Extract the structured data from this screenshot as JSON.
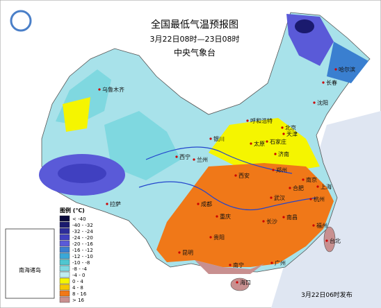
{
  "header": {
    "title": "全国最低气温预报图",
    "subtitle": "3月22日08时—23日08时",
    "agency": "中央气象台"
  },
  "legend": {
    "title": "图例 (℃)",
    "items": [
      {
        "label": "< -40",
        "color": "#0a0a3c"
      },
      {
        "label": "-40 - -32",
        "color": "#1a1a6e"
      },
      {
        "label": "-32 - -24",
        "color": "#2d2d9a"
      },
      {
        "label": "-24 - -20",
        "color": "#4040c0"
      },
      {
        "label": "-20 - -16",
        "color": "#5a5ad8"
      },
      {
        "label": "-16 - -12",
        "color": "#3a7fd0"
      },
      {
        "label": "-12 - -10",
        "color": "#3aa8d8"
      },
      {
        "label": "-10 - -8",
        "color": "#4fc6d0"
      },
      {
        "label": "-8 - -4",
        "color": "#7fd8e0"
      },
      {
        "label": "-4 - 0",
        "color": "#bfecf0"
      },
      {
        "label": "0 - 4",
        "color": "#f5f500"
      },
      {
        "label": "4 - 8",
        "color": "#f5c800"
      },
      {
        "label": "8 - 16",
        "color": "#f07818"
      },
      {
        "label": "> 16",
        "color": "#c89090"
      }
    ]
  },
  "cities": [
    "乌鲁木齐",
    "哈尔滨",
    "长春",
    "沈阳",
    "呼和浩特",
    "北京",
    "天津",
    "石家庄",
    "太原",
    "济南",
    "银川",
    "兰州",
    "西宁",
    "郑州",
    "西安",
    "合肥",
    "南京",
    "上海",
    "武汉",
    "杭州",
    "成都",
    "重庆",
    "长沙",
    "南昌",
    "福州",
    "贵阳",
    "拉萨",
    "昆明",
    "南宁",
    "广州",
    "台北",
    "海口"
  ],
  "inset": {
    "label": "南海诸岛"
  },
  "footer": {
    "note": "3月22日06时发布"
  }
}
